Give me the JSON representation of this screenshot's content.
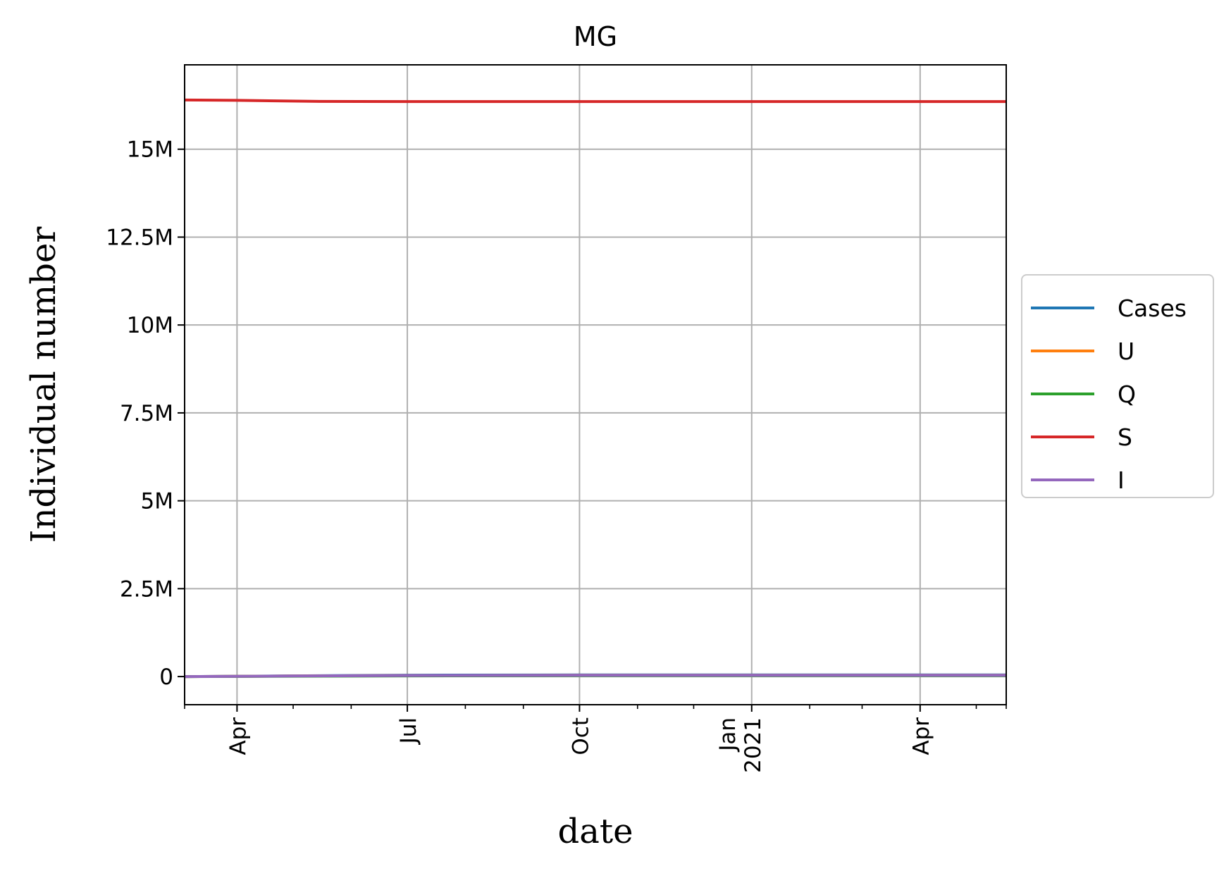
{
  "chart_data": {
    "type": "line",
    "title": "MG",
    "xlabel": "date",
    "ylabel": "Individual number",
    "x_range": [
      "2020-03-04",
      "2021-05-17"
    ],
    "ylim": [
      -800000,
      17400000
    ],
    "grid": true,
    "legend_position": "center-right, outside plot",
    "x_ticks": [
      {
        "date": "2020-04-01",
        "label": "Apr"
      },
      {
        "date": "2020-07-01",
        "label": "Jul"
      },
      {
        "date": "2020-10-01",
        "label": "Oct"
      },
      {
        "date": "2021-01-01",
        "label": "Jan\n2021"
      },
      {
        "date": "2021-04-01",
        "label": "Apr"
      }
    ],
    "x_minor_ticks": [
      "2020-03-04",
      "2020-05-01",
      "2020-06-01",
      "2020-08-01",
      "2020-09-01",
      "2020-11-01",
      "2020-12-01",
      "2021-02-01",
      "2021-03-01",
      "2021-05-01",
      "2021-05-17"
    ],
    "y_ticks": [
      {
        "value": 0,
        "label": "0"
      },
      {
        "value": 2500000,
        "label": "2.5M"
      },
      {
        "value": 5000000,
        "label": "5M"
      },
      {
        "value": 7500000,
        "label": "7.5M"
      },
      {
        "value": 10000000,
        "label": "10M"
      },
      {
        "value": 12500000,
        "label": "12.5M"
      },
      {
        "value": 15000000,
        "label": "15M"
      }
    ],
    "series": [
      {
        "name": "Cases",
        "color": "#1f77b4",
        "points": [
          [
            "2020-03-04",
            0
          ],
          [
            "2020-05-01",
            20000
          ],
          [
            "2020-07-01",
            40000
          ],
          [
            "2020-10-01",
            45000
          ],
          [
            "2021-01-01",
            45000
          ],
          [
            "2021-05-17",
            45000
          ]
        ]
      },
      {
        "name": "U",
        "color": "#ff7f0e",
        "points": [
          [
            "2020-03-04",
            0
          ],
          [
            "2020-05-01",
            15000
          ],
          [
            "2020-07-01",
            30000
          ],
          [
            "2020-10-01",
            35000
          ],
          [
            "2021-01-01",
            35000
          ],
          [
            "2021-05-17",
            35000
          ]
        ]
      },
      {
        "name": "Q",
        "color": "#2ca02c",
        "points": [
          [
            "2020-03-04",
            0
          ],
          [
            "2020-05-01",
            10000
          ],
          [
            "2020-07-01",
            20000
          ],
          [
            "2020-10-01",
            25000
          ],
          [
            "2021-01-01",
            25000
          ],
          [
            "2021-05-17",
            25000
          ]
        ]
      },
      {
        "name": "S",
        "color": "#d62728",
        "points": [
          [
            "2020-03-04",
            16400000
          ],
          [
            "2020-04-01",
            16390000
          ],
          [
            "2020-05-15",
            16360000
          ],
          [
            "2020-07-01",
            16355000
          ],
          [
            "2020-10-01",
            16355000
          ],
          [
            "2021-01-01",
            16355000
          ],
          [
            "2021-05-17",
            16355000
          ]
        ]
      },
      {
        "name": "I",
        "color": "#9467bd",
        "points": [
          [
            "2020-03-04",
            0
          ],
          [
            "2020-05-01",
            15000
          ],
          [
            "2020-07-01",
            30000
          ],
          [
            "2020-10-01",
            35000
          ],
          [
            "2021-01-01",
            35000
          ],
          [
            "2021-05-17",
            35000
          ]
        ]
      }
    ]
  }
}
